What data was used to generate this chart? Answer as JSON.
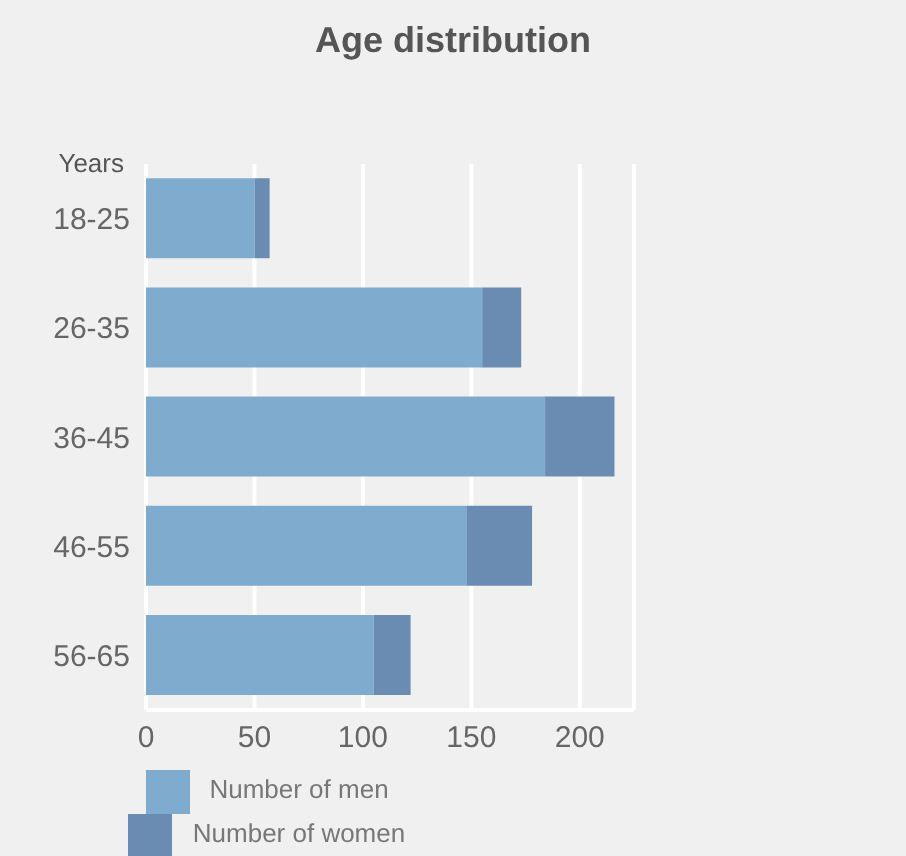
{
  "chart_data": {
    "type": "bar",
    "orientation": "horizontal",
    "stacked": true,
    "title": "Age distribution",
    "ylabel": "Years",
    "categories": [
      "18-25",
      "26-35",
      "36-45",
      "46-55",
      "56-65"
    ],
    "series": [
      {
        "name": "Number of men",
        "color": "#7facce",
        "values": [
          50,
          155,
          184,
          148,
          105
        ]
      },
      {
        "name": "Number of women",
        "color": "#6a8cb3",
        "values": [
          7,
          18,
          32,
          30,
          17
        ]
      }
    ],
    "xlim": [
      0,
      225
    ],
    "xticks": [
      0,
      50,
      100,
      150,
      200
    ],
    "grid": "x",
    "legend": "bottom"
  }
}
